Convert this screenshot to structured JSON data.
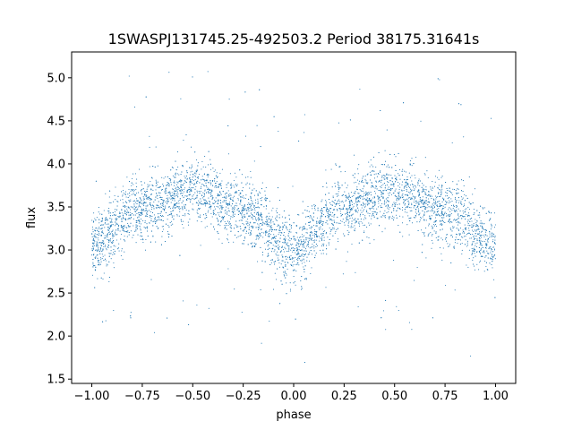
{
  "chart_data": {
    "type": "scatter",
    "title": "1SWASPJ131745.25-492503.2 Period 38175.31641s",
    "xlabel": "phase",
    "ylabel": "flux",
    "xlim": [
      -1.1,
      1.1
    ],
    "ylim": [
      1.45,
      5.3
    ],
    "xticks": [
      -1.0,
      -0.75,
      -0.5,
      -0.25,
      0.0,
      0.25,
      0.5,
      0.75,
      1.0
    ],
    "xtick_labels": [
      "−1.00",
      "−0.75",
      "−0.50",
      "−0.25",
      "0.00",
      "0.25",
      "0.50",
      "0.75",
      "1.00"
    ],
    "yticks": [
      1.5,
      2.0,
      2.5,
      3.0,
      3.5,
      4.0,
      4.5,
      5.0
    ],
    "ytick_labels": [
      "1.5",
      "2.0",
      "2.5",
      "3.0",
      "3.5",
      "4.0",
      "4.5",
      "5.0"
    ],
    "grid": false,
    "marker_color": "#1f77b4",
    "series": [
      {
        "x_range": [
          -1.0,
          1.0
        ],
        "trend_phase": [
          -1.0,
          -0.75,
          -0.5,
          -0.25,
          0.0,
          0.25,
          0.5,
          0.75,
          1.0
        ],
        "trend_flux": [
          3.05,
          3.5,
          3.68,
          3.45,
          3.0,
          3.5,
          3.68,
          3.45,
          3.05
        ]
      }
    ]
  }
}
